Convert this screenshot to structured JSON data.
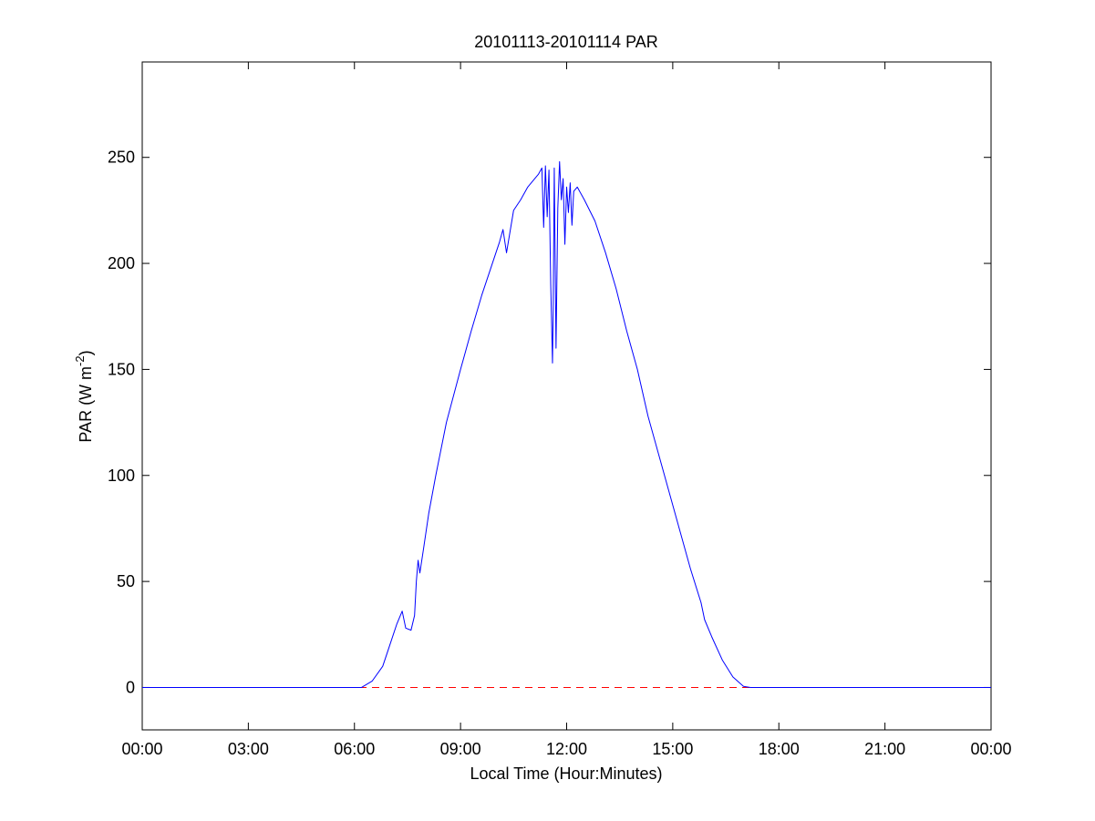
{
  "chart_data": {
    "type": "line",
    "title": "20101113-20101114 PAR",
    "xlabel": "Local Time (Hour:Minutes)",
    "ylabel": {
      "main": "PAR (W m",
      "superscript": "-2",
      "close": ")"
    },
    "xlim": [
      0,
      24
    ],
    "ylim": [
      -20,
      295
    ],
    "x_ticks": [
      0,
      3,
      6,
      9,
      12,
      15,
      18,
      21,
      24
    ],
    "x_tick_labels": [
      "00:00",
      "03:00",
      "06:00",
      "09:00",
      "12:00",
      "15:00",
      "18:00",
      "21:00",
      "00:00"
    ],
    "y_ticks": [
      0,
      50,
      100,
      150,
      200,
      250
    ],
    "y_tick_labels": [
      "0",
      "50",
      "100",
      "150",
      "200",
      "250"
    ],
    "grid": false,
    "legend": "none",
    "series": [
      {
        "color": "#0000ff",
        "style": "solid",
        "x": [
          0,
          6.2,
          6.5,
          6.8,
          7.0,
          7.2,
          7.35,
          7.45,
          7.6,
          7.7,
          7.75,
          7.8,
          7.85,
          7.95,
          8.1,
          8.3,
          8.6,
          9.0,
          9.3,
          9.6,
          9.9,
          10.1,
          10.2,
          10.3,
          10.5,
          10.7,
          10.9,
          11.1,
          11.2,
          11.3,
          11.35,
          11.4,
          11.45,
          11.5,
          11.55,
          11.6,
          11.62,
          11.65,
          11.7,
          11.75,
          11.8,
          11.85,
          11.9,
          11.95,
          12.0,
          12.05,
          12.1,
          12.15,
          12.2,
          12.3,
          12.5,
          12.8,
          13.1,
          13.4,
          13.7,
          14.0,
          14.3,
          14.6,
          14.9,
          15.2,
          15.5,
          15.8,
          15.9,
          16.1,
          16.4,
          16.7,
          17.0,
          17.2,
          17.4,
          24
        ],
        "values": [
          0,
          0,
          3,
          10,
          20,
          30,
          36,
          28,
          27,
          34,
          50,
          60,
          54,
          65,
          82,
          100,
          125,
          150,
          168,
          185,
          200,
          210,
          216,
          205,
          225,
          230,
          236,
          240,
          242,
          245,
          217,
          246,
          222,
          244,
          190,
          153,
          178,
          245,
          160,
          226,
          248,
          230,
          240,
          209,
          236,
          224,
          238,
          218,
          234,
          236,
          230,
          220,
          205,
          188,
          168,
          150,
          128,
          110,
          92,
          74,
          56,
          40,
          32,
          24,
          13,
          5,
          0.5,
          0,
          0,
          0
        ]
      },
      {
        "color": "#ff0000",
        "style": "dashed",
        "x": [
          0,
          24
        ],
        "values": [
          0,
          0
        ]
      }
    ]
  }
}
